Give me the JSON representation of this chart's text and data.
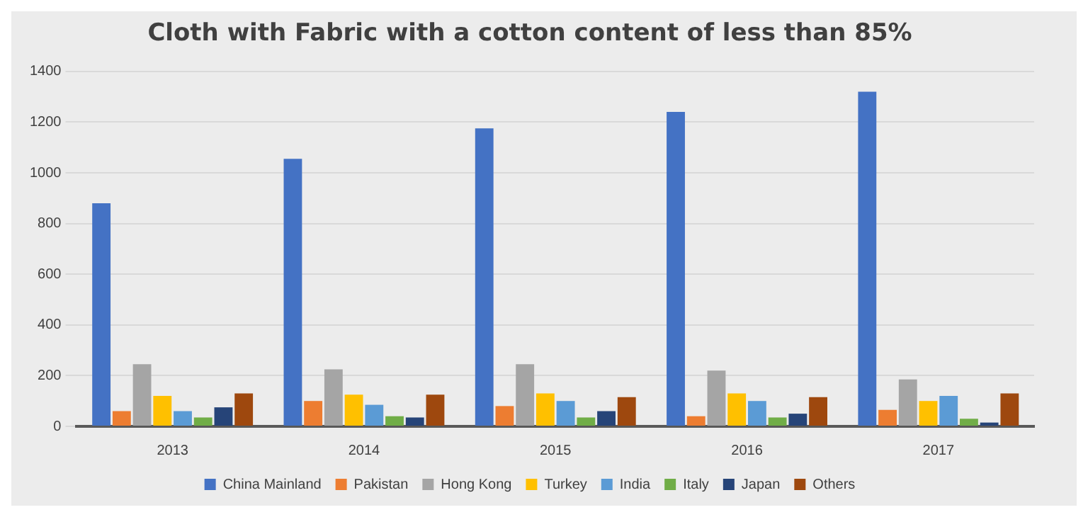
{
  "chart_data": {
    "type": "bar",
    "title": "Cloth with Fabric with a cotton content of less than 85%",
    "categories": [
      "2013",
      "2014",
      "2015",
      "2016",
      "2017"
    ],
    "series": [
      {
        "name": "China Mainland",
        "color": "#4472c4",
        "values": [
          880,
          1055,
          1175,
          1240,
          1320
        ]
      },
      {
        "name": "Pakistan",
        "color": "#ed7d31",
        "values": [
          60,
          100,
          80,
          40,
          65
        ]
      },
      {
        "name": "Hong Kong",
        "color": "#a5a5a5",
        "values": [
          245,
          225,
          245,
          220,
          185
        ]
      },
      {
        "name": "Turkey",
        "color": "#ffc000",
        "values": [
          120,
          125,
          130,
          130,
          100
        ]
      },
      {
        "name": "India",
        "color": "#5b9bd5",
        "values": [
          60,
          85,
          100,
          100,
          120
        ]
      },
      {
        "name": "Italy",
        "color": "#70ad47",
        "values": [
          35,
          40,
          35,
          35,
          30
        ]
      },
      {
        "name": "Japan",
        "color": "#264478",
        "values": [
          75,
          35,
          60,
          50,
          15
        ]
      },
      {
        "name": "Others",
        "color": "#9e480e",
        "values": [
          130,
          125,
          115,
          115,
          130
        ]
      }
    ],
    "ylim": [
      0,
      1400
    ],
    "yticks": [
      0,
      200,
      400,
      600,
      800,
      1000,
      1200,
      1400
    ],
    "grid": "y",
    "legend": "bottom"
  }
}
